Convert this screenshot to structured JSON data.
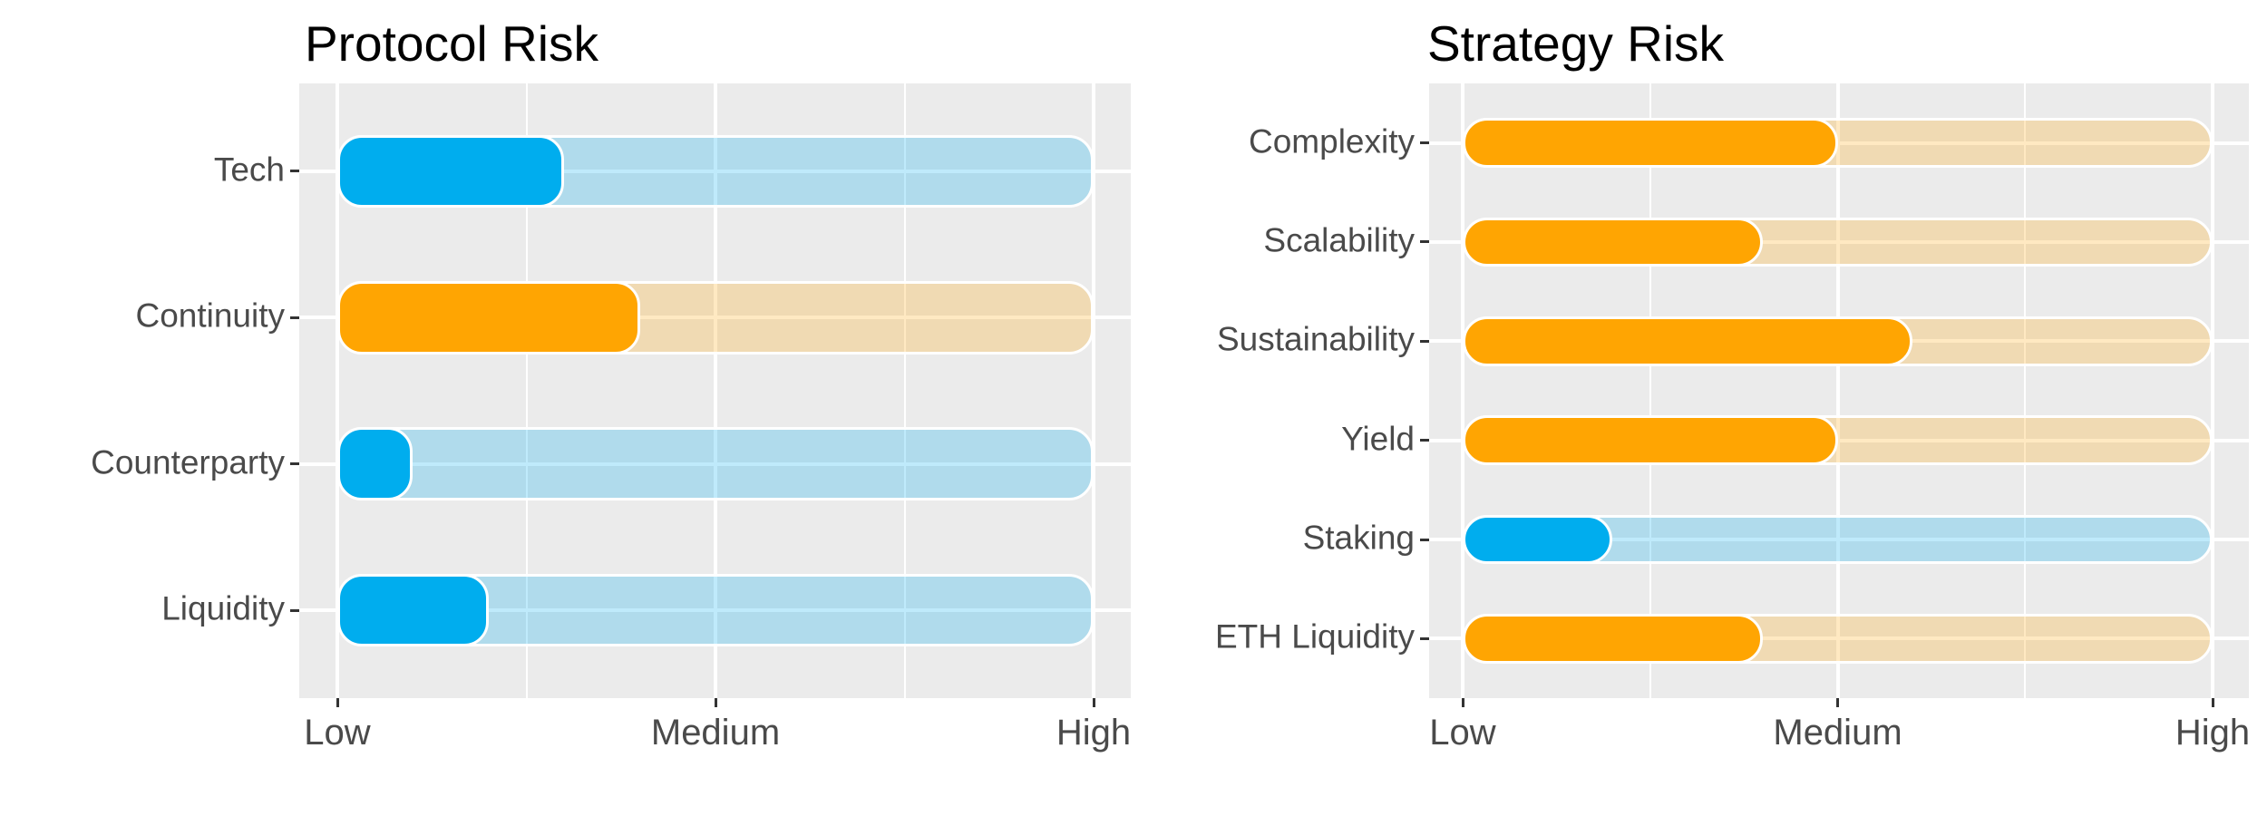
{
  "figure": {
    "name": "risk-assessment-figure",
    "style": {
      "background": "#ffffff",
      "panel_background": "#EBEBEB",
      "grid_color": "#ffffff",
      "axis_text_color": "#4a4a4a",
      "title_color": "#000000",
      "tick_mark_color": "#333333",
      "bar_blue": "#00ADEE",
      "bar_orange": "#FFA502",
      "track_blue": "rgba(0,173,238,0.25)",
      "track_orange": "rgba(255,165,2,0.24)"
    }
  },
  "chart_data": [
    {
      "type": "bar",
      "orientation": "horizontal",
      "title": "Protocol Risk",
      "categories": [
        "Tech",
        "Continuity",
        "Counterparty",
        "Liquidity"
      ],
      "values": [
        1.6,
        1.8,
        1.2,
        1.4
      ],
      "bar_colors": [
        "#00ADEE",
        "#FFA502",
        "#00ADEE",
        "#00ADEE"
      ],
      "track_colors": [
        "rgba(0,173,238,0.25)",
        "rgba(255,165,2,0.24)",
        "rgba(0,173,238,0.25)",
        "rgba(0,173,238,0.25)"
      ],
      "x_tick_labels": [
        "Low",
        "Medium",
        "High"
      ],
      "x_tick_values": [
        1,
        2,
        3
      ],
      "x_range": [
        1,
        3
      ],
      "x_minor_values": [
        1.5,
        2.5
      ],
      "track_full_value": 3,
      "bars_start_value": 1,
      "grid": true,
      "legend": "none",
      "ylabel": "",
      "xlabel": ""
    },
    {
      "type": "bar",
      "orientation": "horizontal",
      "title": "Strategy Risk",
      "categories": [
        "Complexity",
        "Scalability",
        "Sustainability",
        "Yield",
        "Staking",
        "ETH Liquidity"
      ],
      "values": [
        2.0,
        1.8,
        2.2,
        2.0,
        1.4,
        1.8
      ],
      "bar_colors": [
        "#FFA502",
        "#FFA502",
        "#FFA502",
        "#FFA502",
        "#00ADEE",
        "#FFA502"
      ],
      "track_colors": [
        "rgba(255,165,2,0.24)",
        "rgba(255,165,2,0.24)",
        "rgba(255,165,2,0.24)",
        "rgba(255,165,2,0.24)",
        "rgba(0,173,238,0.25)",
        "rgba(255,165,2,0.24)"
      ],
      "x_tick_labels": [
        "Low",
        "Medium",
        "High"
      ],
      "x_tick_values": [
        1,
        2,
        3
      ],
      "x_range": [
        1,
        3
      ],
      "x_minor_values": [
        1.5,
        2.5
      ],
      "track_full_value": 3,
      "bars_start_value": 1,
      "grid": true,
      "legend": "none",
      "ylabel": "",
      "xlabel": ""
    }
  ]
}
